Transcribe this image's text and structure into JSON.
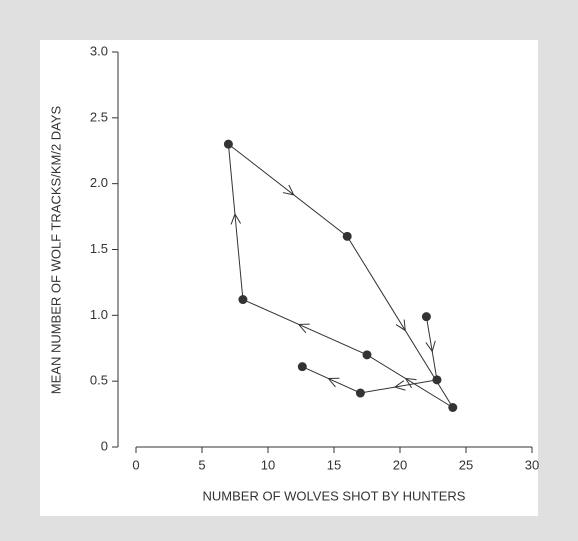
{
  "chart_data": {
    "type": "connected-scatter",
    "xlabel": "NUMBER OF WOLVES SHOT BY HUNTERS",
    "ylabel": "MEAN NUMBER OF WOLF TRACKS/KM/2 DAYS",
    "xlim": [
      0,
      30
    ],
    "ylim": [
      0,
      3
    ],
    "xticks": [
      0,
      5,
      10,
      15,
      20,
      25,
      30
    ],
    "yticks": [
      0,
      0.5,
      {
        "value": 1,
        "label": "1.0"
      },
      1.5,
      {
        "value": 2,
        "label": "2.0"
      },
      2.5,
      {
        "value": 3,
        "label": "3.0"
      }
    ],
    "series": [
      {
        "color": "#333333",
        "closed": true,
        "arrows": true,
        "x": [
          7,
          16,
          24,
          17.5,
          8.1
        ],
        "y": [
          2.3,
          1.6,
          0.3,
          0.7,
          1.12
        ]
      },
      {
        "color": "#333333",
        "closed": false,
        "arrows": true,
        "x": [
          22,
          22.8,
          17,
          12.6
        ],
        "y": [
          0.99,
          0.51,
          0.41,
          0.61
        ]
      }
    ]
  }
}
